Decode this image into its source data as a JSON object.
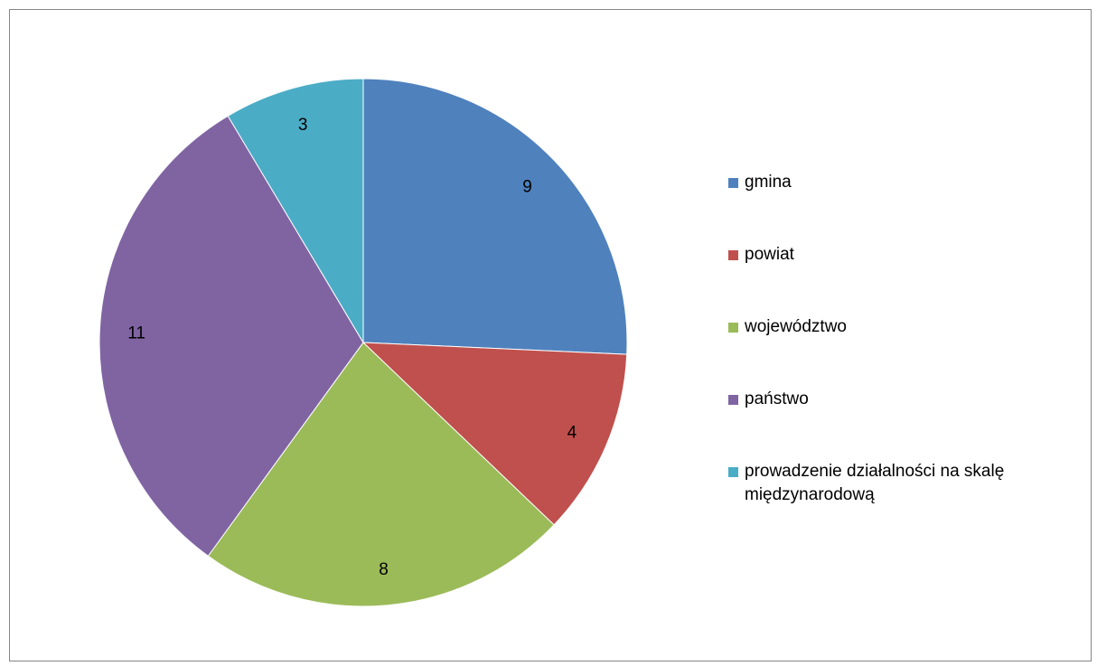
{
  "chart_data": {
    "type": "pie",
    "title": "",
    "categories": [
      "gmina",
      "powiat",
      "województwo",
      "państwo",
      "prowadzenie działalności na skalę międzynarodową"
    ],
    "values": [
      9,
      4,
      8,
      11,
      3
    ],
    "colors": [
      "#4f81bd",
      "#c0504d",
      "#9bbb59",
      "#8064a2",
      "#4bacc6"
    ],
    "data_labels": [
      "9",
      "4",
      "8",
      "11",
      "3"
    ],
    "legend_position": "right",
    "start_angle_deg": 0,
    "direction": "clockwise"
  }
}
